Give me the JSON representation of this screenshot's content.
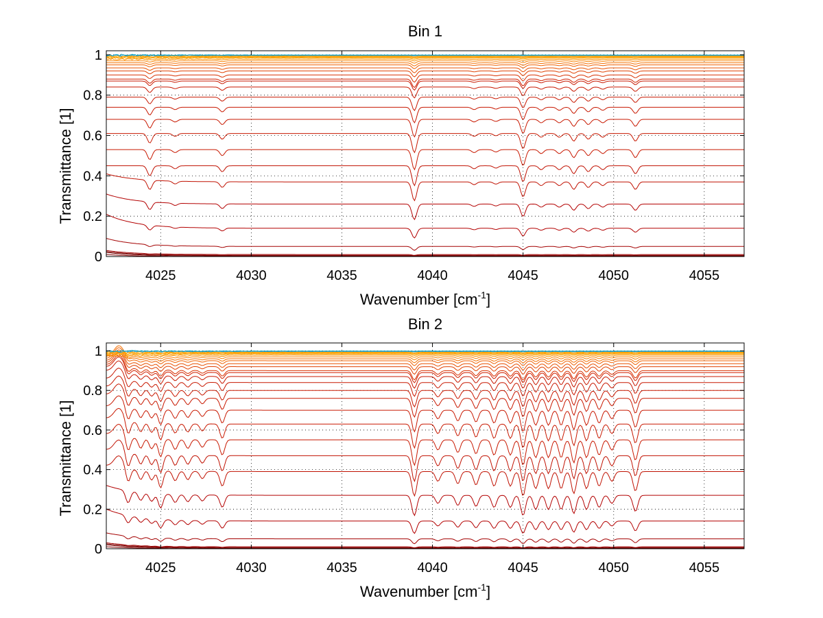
{
  "figure": {
    "background": "#ffffff"
  },
  "chart_data": [
    {
      "type": "line",
      "title": "Bin 1",
      "xlabel_main": "Wavenumber [cm",
      "xlabel_sup": "-1",
      "xlabel_end": "]",
      "ylabel": "Transmittance [1]",
      "xlim": [
        4022,
        4057.2
      ],
      "ylim": [
        0,
        1.02
      ],
      "xticks": [
        4025,
        4030,
        4035,
        4040,
        4045,
        4050,
        4055
      ],
      "yticks": [
        0,
        0.2,
        0.4,
        0.6,
        0.8,
        1
      ],
      "ytick_labels": [
        "0",
        "0.2",
        "0.4",
        "0.6",
        "0.8",
        "1"
      ],
      "grid": true,
      "series_count": 30,
      "series_levels": [
        0.0,
        0.003,
        0.006,
        0.01,
        0.05,
        0.14,
        0.26,
        0.37,
        0.45,
        0.53,
        0.61,
        0.68,
        0.74,
        0.79,
        0.84,
        0.87,
        0.88,
        0.9,
        0.92,
        0.935,
        0.95,
        0.96,
        0.97,
        0.978,
        0.984,
        0.988,
        0.991,
        0.994,
        0.997,
        0.999
      ],
      "series_start_levels": [
        0.01,
        0.02,
        0.025,
        0.03,
        0.09,
        0.21,
        0.31,
        0.41,
        0.45,
        0.53,
        0.61,
        0.68,
        0.74,
        0.79,
        0.84,
        0.87,
        0.88,
        0.9,
        0.92,
        0.935,
        0.95,
        0.96,
        0.97,
        0.978,
        0.984,
        0.988,
        0.991,
        0.994,
        0.997,
        0.999
      ],
      "absorption_lines": [
        {
          "x": 4024.4,
          "depth": 0.05
        },
        {
          "x": 4025.8,
          "depth": 0.015
        },
        {
          "x": 4028.4,
          "depth": 0.03
        },
        {
          "x": 4039.0,
          "depth": 0.1
        },
        {
          "x": 4042.3,
          "depth": 0.015
        },
        {
          "x": 4043.5,
          "depth": 0.012
        },
        {
          "x": 4045.0,
          "depth": 0.08
        },
        {
          "x": 4046.0,
          "depth": 0.02
        },
        {
          "x": 4047.0,
          "depth": 0.02
        },
        {
          "x": 4047.8,
          "depth": 0.04
        },
        {
          "x": 4048.6,
          "depth": 0.03
        },
        {
          "x": 4049.4,
          "depth": 0.02
        },
        {
          "x": 4051.2,
          "depth": 0.04
        }
      ],
      "colors": [
        "#7a0000",
        "#8b0000",
        "#a30000",
        "#b30000",
        "#c01000",
        "#c81800",
        "#d02000",
        "#d83000",
        "#e04000",
        "#e85000",
        "#f06000",
        "#f47000",
        "#f88000",
        "#f99000",
        "#fba000",
        "#1f9bd6",
        "#00a0c0"
      ]
    },
    {
      "type": "line",
      "title": "Bin 2",
      "xlabel_main": "Wavenumber [cm",
      "xlabel_sup": "-1",
      "xlabel_end": "]",
      "ylabel": "Transmittance [1]",
      "xlim": [
        4022,
        4057.2
      ],
      "ylim": [
        0,
        1.04
      ],
      "xticks": [
        4025,
        4030,
        4035,
        4040,
        4045,
        4050,
        4055
      ],
      "yticks": [
        0,
        0.2,
        0.4,
        0.6,
        0.8,
        1
      ],
      "ytick_labels": [
        "0",
        "0.2",
        "0.4",
        "0.6",
        "0.8",
        "1"
      ],
      "grid": true,
      "series_count": 30,
      "series_levels": [
        0.0,
        0.003,
        0.006,
        0.01,
        0.05,
        0.14,
        0.27,
        0.39,
        0.47,
        0.55,
        0.63,
        0.7,
        0.76,
        0.8,
        0.84,
        0.87,
        0.89,
        0.9,
        0.92,
        0.935,
        0.95,
        0.96,
        0.97,
        0.978,
        0.984,
        0.988,
        0.991,
        0.994,
        0.997,
        0.999
      ],
      "series_start_levels": [
        0.01,
        0.02,
        0.025,
        0.03,
        0.08,
        0.2,
        0.32,
        0.42,
        0.5,
        0.58,
        0.66,
        0.72,
        0.78,
        0.82,
        0.86,
        0.9,
        0.92,
        0.93,
        0.94,
        0.95,
        0.96,
        0.97,
        0.975,
        0.98,
        0.985,
        0.988,
        0.991,
        0.994,
        0.997,
        0.999
      ],
      "absorption_lines": [
        {
          "x": 4023.2,
          "depth": 0.06
        },
        {
          "x": 4023.9,
          "depth": 0.04
        },
        {
          "x": 4024.5,
          "depth": 0.04
        },
        {
          "x": 4025.0,
          "depth": 0.07
        },
        {
          "x": 4025.8,
          "depth": 0.04
        },
        {
          "x": 4026.5,
          "depth": 0.035
        },
        {
          "x": 4027.3,
          "depth": 0.03
        },
        {
          "x": 4028.4,
          "depth": 0.06
        },
        {
          "x": 4039.0,
          "depth": 0.1
        },
        {
          "x": 4040.3,
          "depth": 0.04
        },
        {
          "x": 4041.4,
          "depth": 0.05
        },
        {
          "x": 4042.4,
          "depth": 0.055
        },
        {
          "x": 4043.4,
          "depth": 0.06
        },
        {
          "x": 4044.3,
          "depth": 0.06
        },
        {
          "x": 4045.0,
          "depth": 0.1
        },
        {
          "x": 4045.7,
          "depth": 0.07
        },
        {
          "x": 4046.4,
          "depth": 0.07
        },
        {
          "x": 4047.1,
          "depth": 0.07
        },
        {
          "x": 4047.8,
          "depth": 0.09
        },
        {
          "x": 4048.5,
          "depth": 0.07
        },
        {
          "x": 4049.2,
          "depth": 0.06
        },
        {
          "x": 4049.9,
          "depth": 0.04
        },
        {
          "x": 4051.2,
          "depth": 0.08
        }
      ],
      "colors": [
        "#7a0000",
        "#8b0000",
        "#a30000",
        "#b30000",
        "#c01000",
        "#c81800",
        "#d02000",
        "#d83000",
        "#e04000",
        "#e85000",
        "#f06000",
        "#f47000",
        "#f88000",
        "#f99000",
        "#fba000",
        "#1f9bd6",
        "#00a0c0"
      ]
    }
  ]
}
